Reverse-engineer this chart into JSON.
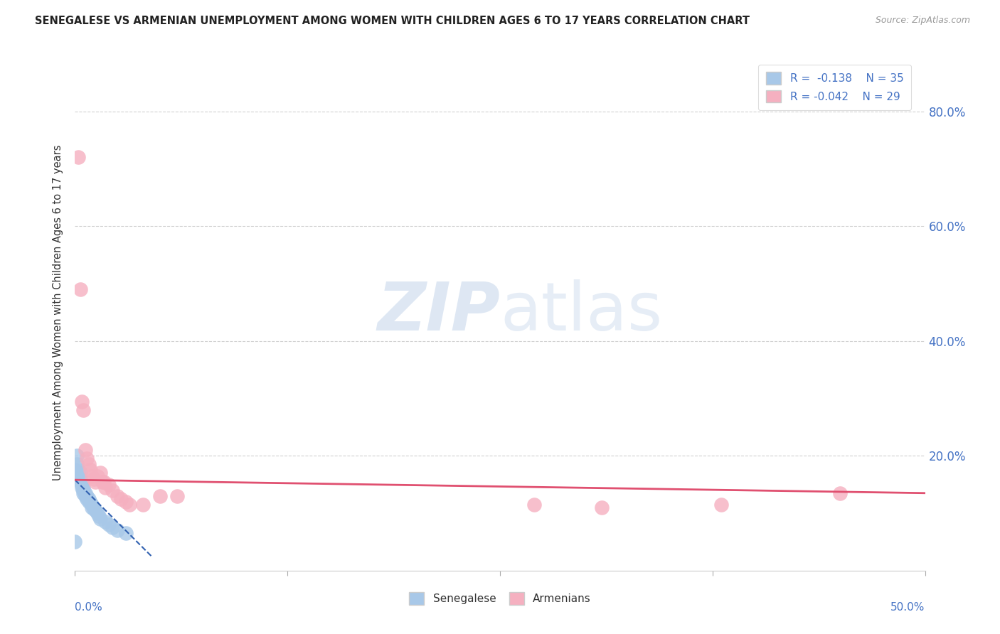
{
  "title": "SENEGALESE VS ARMENIAN UNEMPLOYMENT AMONG WOMEN WITH CHILDREN AGES 6 TO 17 YEARS CORRELATION CHART",
  "source": "Source: ZipAtlas.com",
  "ylabel": "Unemployment Among Women with Children Ages 6 to 17 years",
  "xlim": [
    0.0,
    0.5
  ],
  "ylim": [
    0.0,
    0.9
  ],
  "yticks": [
    0.2,
    0.4,
    0.6,
    0.8
  ],
  "ytick_labels_right": [
    "20.0%",
    "40.0%",
    "60.0%",
    "80.0%"
  ],
  "xtick_positions": [
    0.0,
    0.125,
    0.25,
    0.375,
    0.5
  ],
  "legend_r_senegalese": "-0.138",
  "legend_n_senegalese": "35",
  "legend_r_armenian": "-0.042",
  "legend_n_armenian": "29",
  "senegalese_color": "#a8c8e8",
  "armenian_color": "#f5b0c0",
  "senegalese_line_color": "#3060b0",
  "armenian_line_color": "#e05070",
  "watermark_color": "#c8d8ec",
  "senegalese_x": [
    0.0,
    0.001,
    0.001,
    0.002,
    0.002,
    0.002,
    0.003,
    0.003,
    0.003,
    0.004,
    0.004,
    0.004,
    0.005,
    0.005,
    0.005,
    0.006,
    0.006,
    0.007,
    0.007,
    0.008,
    0.008,
    0.009,
    0.01,
    0.01,
    0.011,
    0.012,
    0.013,
    0.014,
    0.015,
    0.018,
    0.02,
    0.022,
    0.025,
    0.03,
    0.0
  ],
  "senegalese_y": [
    0.175,
    0.2,
    0.185,
    0.175,
    0.165,
    0.16,
    0.17,
    0.16,
    0.155,
    0.155,
    0.15,
    0.145,
    0.145,
    0.14,
    0.135,
    0.135,
    0.13,
    0.13,
    0.125,
    0.125,
    0.12,
    0.118,
    0.115,
    0.11,
    0.108,
    0.105,
    0.1,
    0.095,
    0.09,
    0.085,
    0.08,
    0.075,
    0.07,
    0.065,
    0.05
  ],
  "armenian_x": [
    0.002,
    0.003,
    0.004,
    0.005,
    0.006,
    0.007,
    0.008,
    0.009,
    0.01,
    0.011,
    0.012,
    0.013,
    0.015,
    0.016,
    0.017,
    0.018,
    0.02,
    0.022,
    0.025,
    0.027,
    0.03,
    0.032,
    0.04,
    0.05,
    0.06,
    0.27,
    0.31,
    0.38,
    0.45
  ],
  "armenian_y": [
    0.72,
    0.49,
    0.295,
    0.28,
    0.21,
    0.195,
    0.185,
    0.175,
    0.165,
    0.16,
    0.155,
    0.165,
    0.17,
    0.155,
    0.155,
    0.145,
    0.15,
    0.14,
    0.13,
    0.125,
    0.12,
    0.115,
    0.115,
    0.13,
    0.13,
    0.115,
    0.11,
    0.115,
    0.135
  ],
  "senegalese_line_x": [
    0.0,
    0.045
  ],
  "senegalese_line_y": [
    0.158,
    0.025
  ],
  "armenian_line_x": [
    0.0,
    0.5
  ],
  "armenian_line_y": [
    0.158,
    0.135
  ]
}
